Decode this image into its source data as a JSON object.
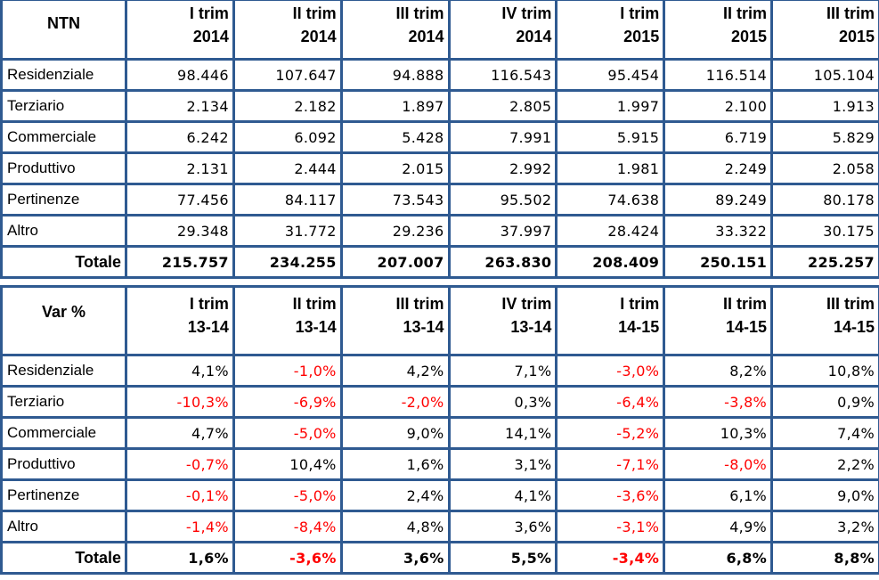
{
  "border_color": "#2f5a91",
  "negative_color": "#ff0000",
  "ntn_table": {
    "corner": "NTN",
    "columns": [
      [
        "I trim",
        "2014"
      ],
      [
        "II trim",
        "2014"
      ],
      [
        "III trim",
        "2014"
      ],
      [
        "IV trim",
        "2014"
      ],
      [
        "I trim",
        "2015"
      ],
      [
        "II trim",
        "2015"
      ],
      [
        "III trim",
        "2015"
      ]
    ],
    "rows": [
      {
        "label": "Residenziale",
        "values": [
          "98.446",
          "107.647",
          "94.888",
          "116.543",
          "95.454",
          "116.514",
          "105.104"
        ]
      },
      {
        "label": "Terziario",
        "values": [
          "2.134",
          "2.182",
          "1.897",
          "2.805",
          "1.997",
          "2.100",
          "1.913"
        ]
      },
      {
        "label": "Commerciale",
        "values": [
          "6.242",
          "6.092",
          "5.428",
          "7.991",
          "5.915",
          "6.719",
          "5.829"
        ]
      },
      {
        "label": "Produttivo",
        "values": [
          "2.131",
          "2.444",
          "2.015",
          "2.992",
          "1.981",
          "2.249",
          "2.058"
        ]
      },
      {
        "label": "Pertinenze",
        "values": [
          "77.456",
          "84.117",
          "73.543",
          "95.502",
          "74.638",
          "89.249",
          "80.178"
        ]
      },
      {
        "label": "Altro",
        "values": [
          "29.348",
          "31.772",
          "29.236",
          "37.997",
          "28.424",
          "33.322",
          "30.175"
        ]
      }
    ],
    "total": {
      "label": "Totale",
      "values": [
        "215.757",
        "234.255",
        "207.007",
        "263.830",
        "208.409",
        "250.151",
        "225.257"
      ]
    }
  },
  "var_table": {
    "corner": "Var %",
    "columns": [
      [
        "I trim",
        "13-14"
      ],
      [
        "II trim",
        "13-14"
      ],
      [
        "III trim",
        "13-14"
      ],
      [
        "IV trim",
        "13-14"
      ],
      [
        "I trim",
        "14-15"
      ],
      [
        "II trim",
        "14-15"
      ],
      [
        "III trim",
        "14-15"
      ]
    ],
    "rows": [
      {
        "label": "Residenziale",
        "values": [
          "4,1%",
          "-1,0%",
          "4,2%",
          "7,1%",
          "-3,0%",
          "8,2%",
          "10,8%"
        ]
      },
      {
        "label": "Terziario",
        "values": [
          "-10,3%",
          "-6,9%",
          "-2,0%",
          "0,3%",
          "-6,4%",
          "-3,8%",
          "0,9%"
        ]
      },
      {
        "label": "Commerciale",
        "values": [
          "4,7%",
          "-5,0%",
          "9,0%",
          "14,1%",
          "-5,2%",
          "10,3%",
          "7,4%"
        ]
      },
      {
        "label": "Produttivo",
        "values": [
          "-0,7%",
          "10,4%",
          "1,6%",
          "3,1%",
          "-7,1%",
          "-8,0%",
          "2,2%"
        ]
      },
      {
        "label": "Pertinenze",
        "values": [
          "-0,1%",
          "-5,0%",
          "2,4%",
          "4,1%",
          "-3,6%",
          "6,1%",
          "9,0%"
        ]
      },
      {
        "label": "Altro",
        "values": [
          "-1,4%",
          "-8,4%",
          "4,8%",
          "3,6%",
          "-3,1%",
          "4,9%",
          "3,2%"
        ]
      }
    ],
    "total": {
      "label": "Totale",
      "values": [
        "1,6%",
        "-3,6%",
        "3,6%",
        "5,5%",
        "-3,4%",
        "6,8%",
        "8,8%"
      ]
    }
  }
}
